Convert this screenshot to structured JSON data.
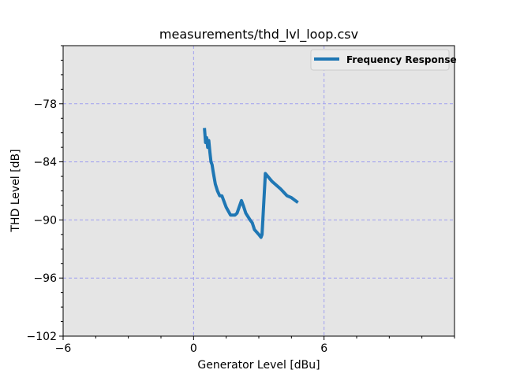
{
  "chart_data": {
    "type": "line",
    "title": "measurements/thd_lvl_loop.csv",
    "xlabel": "Generator Level [dBu]",
    "ylabel": "THD Level [dB]",
    "xlim": [
      -6,
      12
    ],
    "ylim": [
      -102,
      -72
    ],
    "x_ticks": [
      -6,
      0,
      6
    ],
    "x_tick_labels": [
      "−6",
      "0",
      "6"
    ],
    "y_ticks": [
      -102,
      -96,
      -90,
      -84,
      -78
    ],
    "y_tick_labels": [
      "−102",
      "−96",
      "−90",
      "−84",
      "−78"
    ],
    "grid": true,
    "legend_position": "top-right",
    "background": "#e5e5e5",
    "grid_color": "#a0a0f0",
    "series": [
      {
        "name": "Frequency Response",
        "color": "#1f77b4",
        "x": [
          0.5,
          0.55,
          0.6,
          0.65,
          0.7,
          0.75,
          0.8,
          0.85,
          0.9,
          1.0,
          1.1,
          1.2,
          1.3,
          1.5,
          1.7,
          1.9,
          2.0,
          2.2,
          2.3,
          2.4,
          2.6,
          2.7,
          2.8,
          3.0,
          3.1,
          3.15,
          3.3,
          3.6,
          4.0,
          4.3,
          4.5,
          4.8
        ],
        "y": [
          -80.5,
          -82.0,
          -81.5,
          -82.5,
          -81.8,
          -83.0,
          -84.0,
          -84.3,
          -85.0,
          -86.3,
          -87.0,
          -87.5,
          -87.5,
          -88.7,
          -89.5,
          -89.5,
          -89.3,
          -88.0,
          -88.6,
          -89.3,
          -90.0,
          -90.3,
          -91.0,
          -91.5,
          -91.8,
          -91.5,
          -85.2,
          -86.0,
          -86.8,
          -87.5,
          -87.7,
          -88.2
        ]
      }
    ]
  }
}
